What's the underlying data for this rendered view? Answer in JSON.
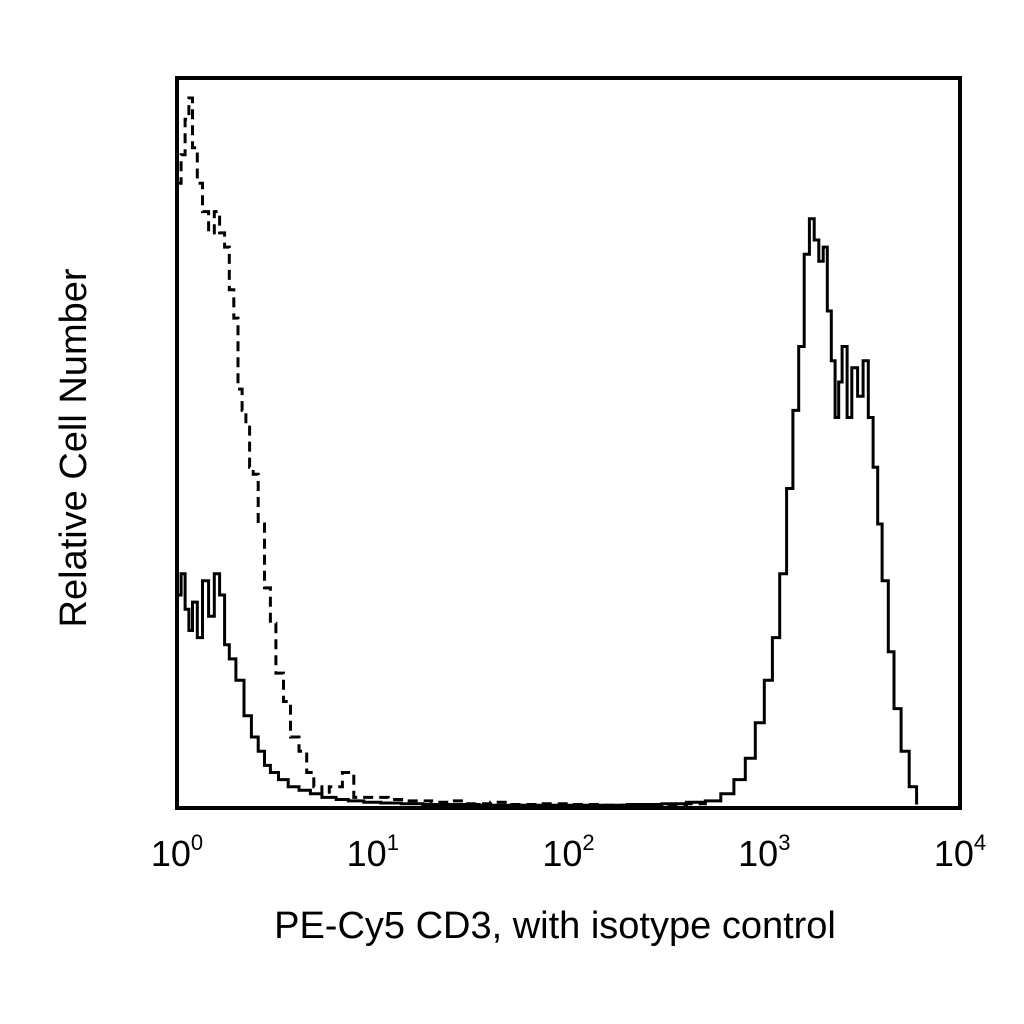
{
  "chart_data": {
    "type": "line",
    "title": "",
    "xlabel": "PE-Cy5 CD3, with isotype control",
    "ylabel": "Relative Cell Number",
    "x_scale": "log",
    "xlim": [
      1,
      10000
    ],
    "ylim": [
      0,
      100
    ],
    "x_ticks": [
      {
        "base": "10",
        "exp": "0",
        "value": 1
      },
      {
        "base": "10",
        "exp": "1",
        "value": 10
      },
      {
        "base": "10",
        "exp": "2",
        "value": 100
      },
      {
        "base": "10",
        "exp": "3",
        "value": 1000
      },
      {
        "base": "10",
        "exp": "4",
        "value": 10000
      }
    ],
    "grid": false,
    "legend": "none",
    "series": [
      {
        "style": "dashed",
        "color": "#000000",
        "x": [
          1.0,
          1.05,
          1.1,
          1.15,
          1.2,
          1.27,
          1.35,
          1.45,
          1.55,
          1.65,
          1.75,
          1.85,
          1.95,
          2.05,
          2.15,
          2.25,
          2.35,
          2.45,
          2.6,
          2.8,
          3.0,
          3.2,
          3.5,
          3.8,
          4.2,
          4.6,
          5.0,
          5.5,
          6.0,
          7.0,
          8.0,
          10,
          12,
          15,
          20,
          25,
          30,
          40,
          50,
          70,
          100,
          150,
          200,
          300,
          400,
          500
        ],
        "y": [
          88,
          92,
          97,
          100,
          93,
          88,
          84,
          81,
          84,
          81,
          79,
          73,
          69,
          59,
          56,
          54,
          48,
          47,
          40,
          31,
          26,
          19,
          15,
          10,
          8,
          5,
          3,
          2,
          3,
          5,
          1.5,
          1.5,
          1.2,
          1.0,
          0.8,
          1.0,
          0.6,
          0.8,
          0.5,
          0.6,
          0.5,
          0.4,
          0.5,
          0.5,
          0.6,
          0.4
        ]
      },
      {
        "style": "solid",
        "color": "#000000",
        "x": [
          1.0,
          1.05,
          1.1,
          1.15,
          1.2,
          1.27,
          1.35,
          1.45,
          1.55,
          1.65,
          1.75,
          1.85,
          2.0,
          2.2,
          2.4,
          2.6,
          2.8,
          3.0,
          3.3,
          3.7,
          4.2,
          4.8,
          5.5,
          6.5,
          7.5,
          9,
          11,
          14,
          18,
          25,
          35,
          50,
          70,
          100,
          150,
          200,
          300,
          400,
          500,
          600,
          700,
          800,
          900,
          1000,
          1100,
          1200,
          1300,
          1400,
          1500,
          1600,
          1700,
          1800,
          1900,
          2000,
          2100,
          2200,
          2300,
          2400,
          2500,
          2650,
          2800,
          3000,
          3200,
          3400,
          3600,
          3800,
          4000,
          4300,
          4600,
          5000,
          5500,
          6000
        ],
        "y": [
          30,
          33,
          28,
          25,
          29,
          24,
          32,
          27,
          33,
          30,
          23,
          21,
          18,
          13,
          10,
          8,
          6,
          5,
          4,
          3,
          2.5,
          2,
          1.5,
          1.2,
          1.0,
          0.8,
          0.7,
          0.6,
          0.5,
          0.5,
          0.4,
          0.4,
          0.4,
          0.4,
          0.4,
          0.5,
          0.6,
          0.8,
          1.0,
          2,
          4,
          7,
          12,
          18,
          24,
          33,
          45,
          56,
          65,
          78,
          83,
          80,
          77,
          79,
          70,
          63,
          55,
          60,
          65,
          55,
          62,
          58,
          63,
          55,
          48,
          40,
          32,
          22,
          14,
          8,
          3,
          0.5
        ]
      }
    ]
  }
}
